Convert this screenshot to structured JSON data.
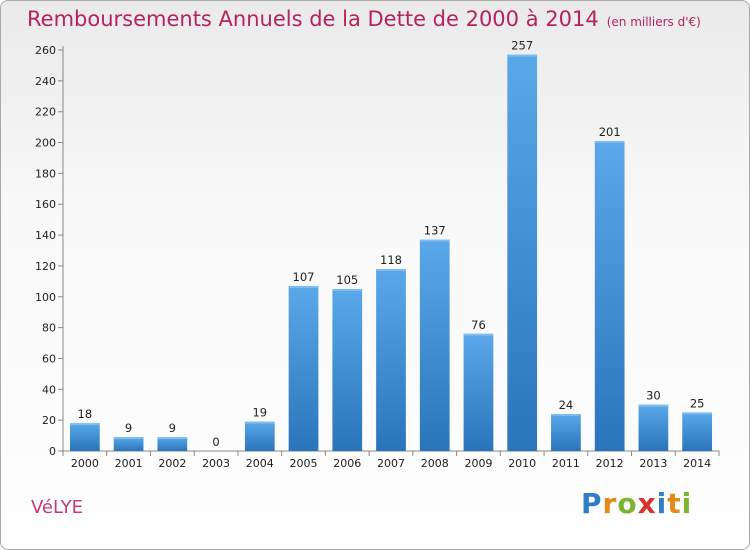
{
  "header": {
    "title": "Remboursements Annuels de la Dette de 2000 à 2014",
    "unit": "(en milliers d'€)"
  },
  "place": "VéLYE",
  "logo": {
    "letters": [
      "P",
      "r",
      "o",
      "x",
      "i",
      "t",
      "i"
    ],
    "colors": [
      "#2f7fc8",
      "#e48a19",
      "#7ab52d",
      "#d8322d",
      "#2f7fc8",
      "#e48a19",
      "#7ab52d"
    ]
  },
  "chart_data": {
    "type": "bar",
    "title": "Remboursements Annuels de la Dette de 2000 à 2014",
    "xlabel": "",
    "ylabel": "",
    "categories": [
      "2000",
      "2001",
      "2002",
      "2003",
      "2004",
      "2005",
      "2006",
      "2007",
      "2008",
      "2009",
      "2010",
      "2011",
      "2012",
      "2013",
      "2014"
    ],
    "values": [
      18,
      9,
      9,
      0,
      19,
      107,
      105,
      118,
      137,
      76,
      257,
      24,
      201,
      30,
      25
    ],
    "ylim": [
      0,
      260
    ],
    "yticks": [
      0,
      20,
      40,
      60,
      80,
      100,
      120,
      140,
      160,
      180,
      200,
      220,
      240,
      260
    ],
    "grid": false,
    "bar_color": "#3e8fd8",
    "bar_color_dark": "#2a74bb"
  }
}
